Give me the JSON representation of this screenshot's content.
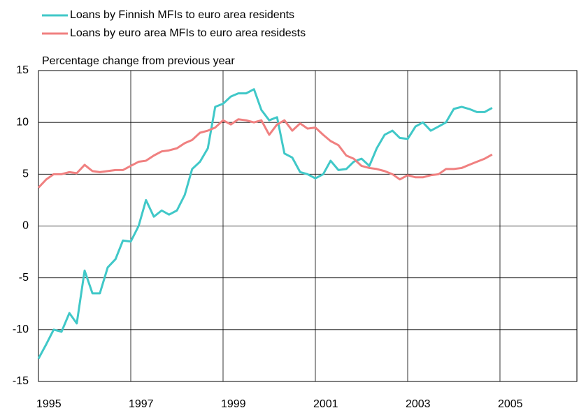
{
  "chart_data": {
    "type": "line",
    "ylabel": "Percentage change from previous year",
    "xlim": [
      1995,
      2006.667
    ],
    "ylim": [
      -15,
      15
    ],
    "xticks": [
      1995,
      1997,
      1999,
      2001,
      2003,
      2005
    ],
    "yticks": [
      -15,
      -10,
      -5,
      0,
      5,
      10,
      15
    ],
    "grid": true,
    "legend": "top-left",
    "x": [
      1995,
      1995.17,
      1995.33,
      1995.5,
      1995.67,
      1995.83,
      1996,
      1996.17,
      1996.33,
      1996.5,
      1996.67,
      1996.83,
      1997,
      1997.17,
      1997.33,
      1997.5,
      1997.67,
      1997.83,
      1998,
      1998.17,
      1998.33,
      1998.5,
      1998.67,
      1998.83,
      1999,
      1999.17,
      1999.33,
      1999.5,
      1999.67,
      1999.83,
      2000,
      2000.17,
      2000.33,
      2000.5,
      2000.67,
      2000.83,
      2001,
      2001.17,
      2001.33,
      2001.5,
      2001.67,
      2001.83,
      2002,
      2002.17,
      2002.33,
      2002.5,
      2002.67,
      2002.83,
      2003,
      2003.17,
      2003.33,
      2003.5,
      2003.67,
      2003.83,
      2004,
      2004.17,
      2004.33,
      2004.5,
      2004.67,
      2004.83
    ],
    "series": [
      {
        "name": "Loans by Finnish MFIs to euro area residents",
        "color": "#40c8c8",
        "values": [
          -12.8,
          -11.4,
          -10.0,
          -10.2,
          -8.4,
          -9.4,
          -4.3,
          -6.5,
          -6.5,
          -4.0,
          -3.2,
          -1.4,
          -1.5,
          0.0,
          2.5,
          0.9,
          1.5,
          1.1,
          1.5,
          3.0,
          5.5,
          6.2,
          7.5,
          11.5,
          11.8,
          12.5,
          12.8,
          12.8,
          13.2,
          11.2,
          10.2,
          10.5,
          7.0,
          6.6,
          5.2,
          5.0,
          4.6,
          5.0,
          6.3,
          5.4,
          5.5,
          6.2,
          6.5,
          5.8,
          7.5,
          8.8,
          9.2,
          8.5,
          8.4,
          9.6,
          10.0,
          9.2,
          9.6,
          10.0,
          11.3,
          11.5,
          11.3,
          11.0,
          11.0,
          11.4
        ]
      },
      {
        "name": "Loans by euro area MFIs to euro area residests",
        "color": "#f08080",
        "values": [
          3.7,
          4.5,
          5.0,
          5.0,
          5.2,
          5.1,
          5.9,
          5.3,
          5.2,
          5.3,
          5.4,
          5.4,
          5.8,
          6.2,
          6.3,
          6.8,
          7.2,
          7.3,
          7.5,
          8.0,
          8.3,
          9.0,
          9.2,
          9.5,
          10.2,
          9.8,
          10.3,
          10.2,
          10.0,
          10.2,
          8.8,
          9.8,
          10.2,
          9.2,
          9.9,
          9.4,
          9.5,
          8.8,
          8.2,
          7.8,
          6.8,
          6.5,
          5.8,
          5.6,
          5.5,
          5.3,
          5.0,
          4.5,
          4.9,
          4.7,
          4.7,
          4.9,
          5.0,
          5.5,
          5.5,
          5.6,
          5.9,
          6.2,
          6.5,
          6.9
        ]
      }
    ]
  }
}
